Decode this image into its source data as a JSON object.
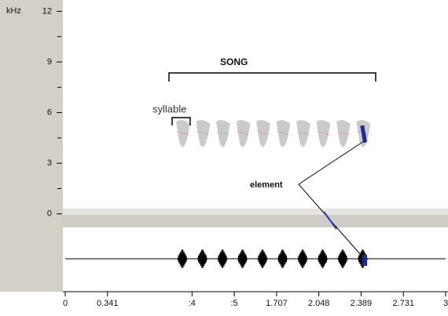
{
  "chart_data": {
    "type": "spectrogram",
    "y_unit_label": "kHz",
    "ylim": [
      -0.8,
      12.3
    ],
    "yticks": [
      0,
      3,
      6,
      9,
      12
    ],
    "xlim": [
      0,
      3.072
    ],
    "xticks": [
      0,
      0.341,
      {
        "value": 1.024,
        "label": ":4"
      },
      {
        "value": 1.365,
        "label": ":5"
      },
      1.707,
      2.048,
      2.389,
      2.731,
      {
        "value": 3.072,
        "label": "3"
      }
    ],
    "annotations": [
      "SONG",
      "syllable",
      "element"
    ]
  }
}
